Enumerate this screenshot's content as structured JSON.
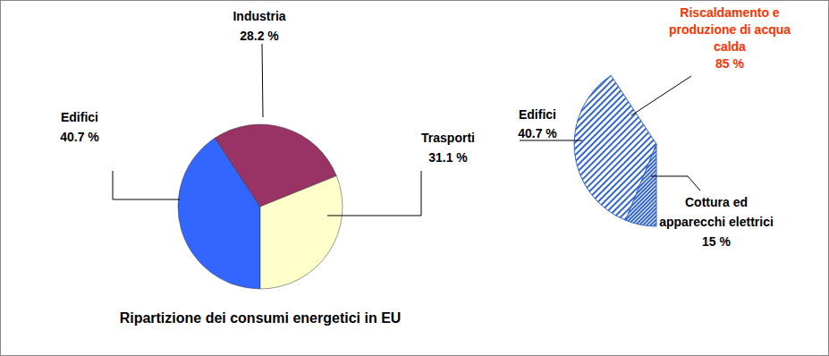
{
  "chart_data": [
    {
      "type": "pie",
      "title": "Ripartizione dei consumi energetici in EU",
      "categories": [
        "Edifici",
        "Industria",
        "Trasporti"
      ],
      "values": [
        40.7,
        28.2,
        31.1
      ],
      "value_labels": [
        "40.7 %",
        "28.2 %",
        "31.1 %"
      ],
      "colors": [
        "#3366ff",
        "#993366",
        "#ffffcc"
      ],
      "data_labels": true
    },
    {
      "type": "pie",
      "title": "Edifici",
      "share": 40.7,
      "share_label": "40.7 %",
      "categories": [
        "Riscaldamento e produzione di acqua calda",
        "Cottura ed apparecchi elettrici"
      ],
      "values": [
        85,
        15
      ],
      "value_labels": [
        "85 %",
        "15 %"
      ],
      "colors": [
        "#3366cc",
        "#3366cc"
      ],
      "data_labels": true
    }
  ]
}
